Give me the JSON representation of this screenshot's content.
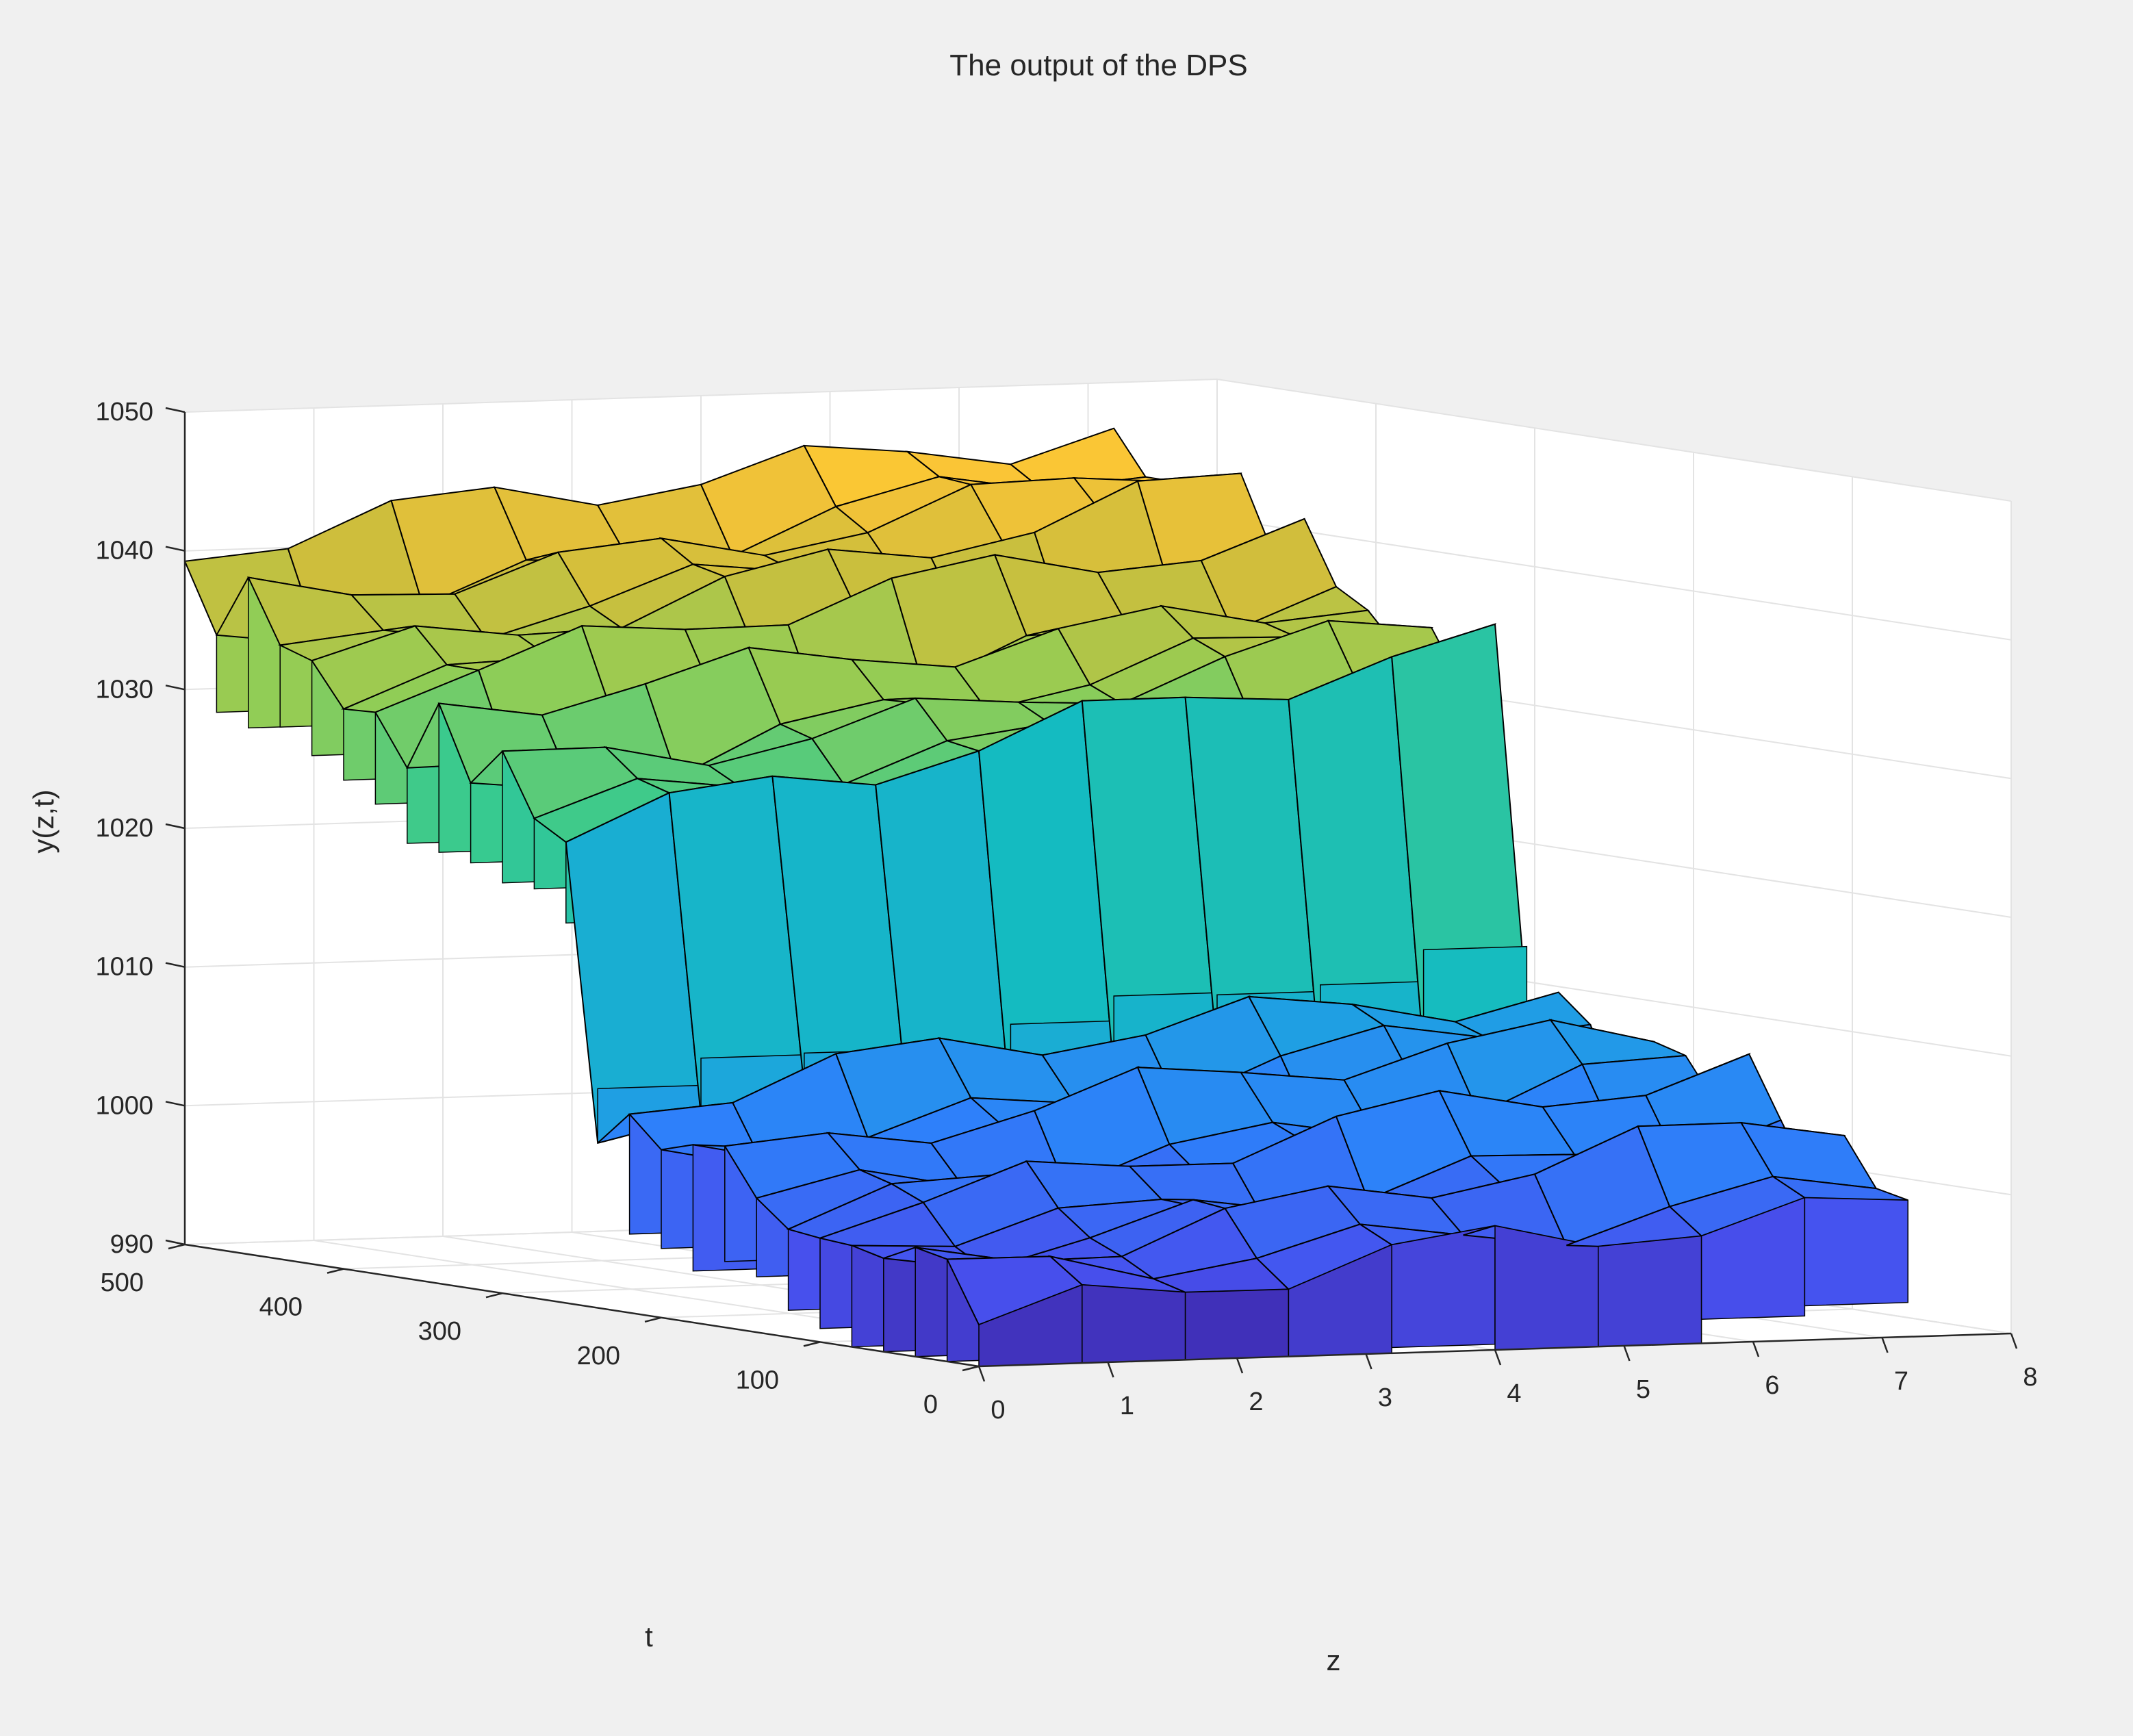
{
  "chart_data": {
    "type": "surface3d",
    "title": "The output of the DPS",
    "xlabel": "z",
    "ylabel": "t",
    "zlabel": "y(z,t)",
    "xlim": [
      0,
      8
    ],
    "ylim": [
      0,
      500
    ],
    "zlim": [
      990,
      1050
    ],
    "xticks": [
      "0",
      "1",
      "2",
      "3",
      "4",
      "5",
      "6",
      "7",
      "8"
    ],
    "yticks": [
      "0",
      "100",
      "200",
      "300",
      "400",
      "500"
    ],
    "zticks": [
      "990",
      "1000",
      "1010",
      "1020",
      "1030",
      "1040",
      "1050"
    ],
    "grid": true,
    "colormap": "parula",
    "z_grid": [
      0,
      0.8,
      1.6,
      2.4,
      3.2,
      4.0,
      4.8,
      5.6,
      6.4,
      7.2
    ],
    "t_grid": [
      0,
      20,
      40,
      60,
      80,
      100,
      120,
      140,
      160,
      180,
      200,
      220,
      240,
      260,
      280,
      300,
      320,
      340,
      360,
      380,
      400,
      420,
      440,
      460,
      480,
      500
    ],
    "description_values": {
      "low_block_t_range": [
        0,
        250
      ],
      "low_block_y_range": [
        991,
        1018
      ],
      "high_block_t_range": [
        250,
        500
      ],
      "high_block_y_range": [
        1020,
        1048
      ]
    }
  },
  "colors": {
    "background": "#f0f0f0",
    "axes_background": "#ffffff",
    "grid": "#e3e3e3",
    "axis_line": "#262626",
    "edge": "#000000"
  }
}
